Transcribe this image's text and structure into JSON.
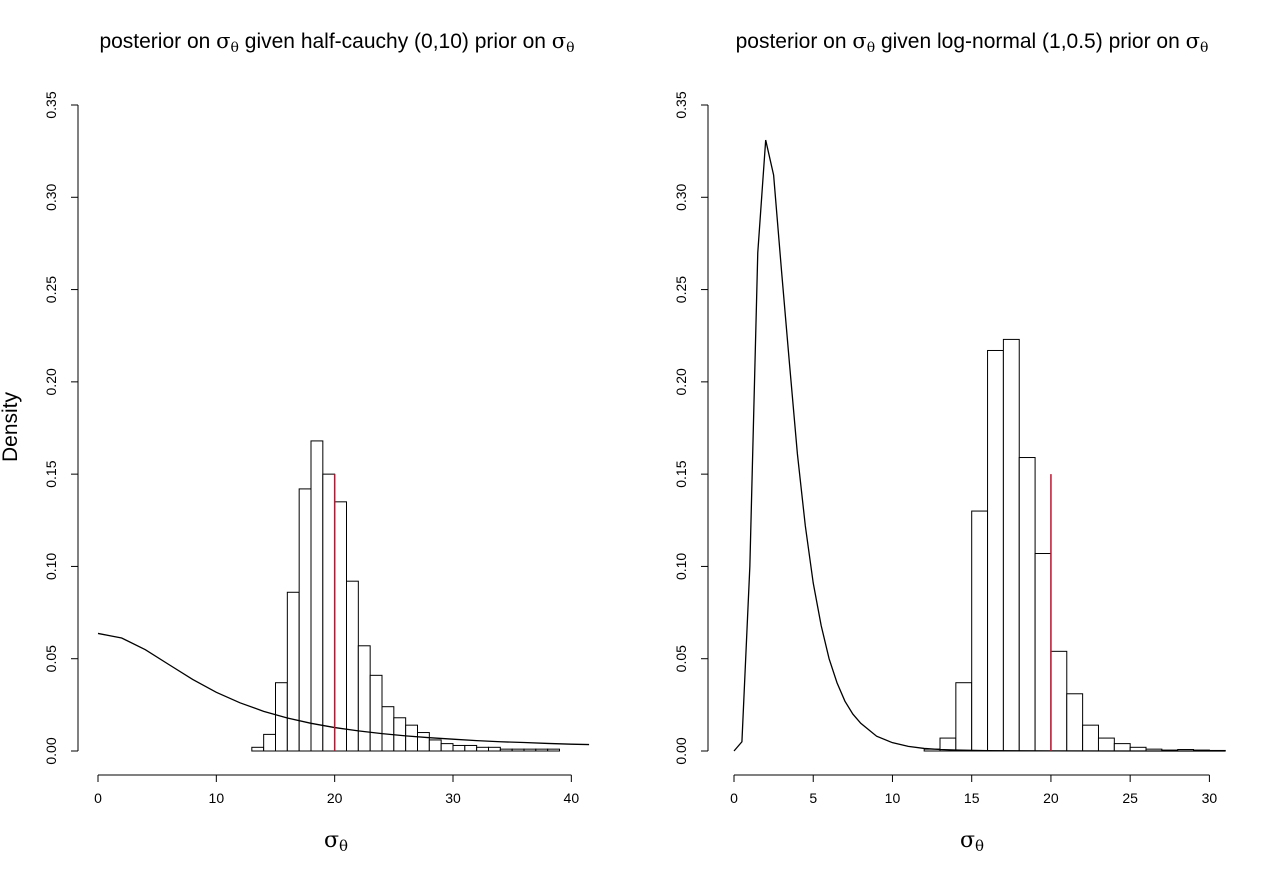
{
  "colors": {
    "reference_line": "#c8102e",
    "bars": "#ffffff",
    "ink": "#000000"
  },
  "y_axis_shared_label": "Density",
  "chart_data": [
    {
      "type": "bar",
      "title_prefix": "posterior on ",
      "title_symbol": "σ",
      "title_subscript": "θ",
      "title_middle": " given half-cauchy (0,10) prior on  ",
      "title_symbol2": "σ",
      "title_subscript2": "θ",
      "xlabel_symbol": "σ",
      "xlabel_subscript": "θ",
      "ylabel": "Density",
      "xlim": [
        0,
        42
      ],
      "ylim": [
        0,
        0.35
      ],
      "x_ticks": [
        0,
        10,
        20,
        30,
        40
      ],
      "y_ticks": [
        "0.00",
        "0.05",
        "0.10",
        "0.15",
        "0.20",
        "0.25",
        "0.30",
        "0.35"
      ],
      "histogram": {
        "bin_edges": [
          13,
          14,
          15,
          16,
          17,
          18,
          19,
          20,
          21,
          22,
          23,
          24,
          25,
          26,
          27,
          28,
          29,
          30,
          31,
          32,
          33,
          34,
          35,
          36,
          37,
          38,
          39
        ],
        "densities": [
          0.002,
          0.009,
          0.037,
          0.086,
          0.142,
          0.168,
          0.15,
          0.135,
          0.092,
          0.057,
          0.041,
          0.024,
          0.018,
          0.014,
          0.01,
          0.006,
          0.004,
          0.003,
          0.003,
          0.002,
          0.002,
          0.001,
          0.001,
          0.001,
          0.001,
          0.001
        ]
      },
      "curve": {
        "name": "half-cauchy (0,10) prior",
        "x": [
          0,
          2,
          4,
          6,
          8,
          10,
          12,
          14,
          16,
          18,
          20,
          22,
          24,
          26,
          28,
          30,
          32,
          34,
          36,
          38,
          40,
          41.5
        ],
        "y": [
          0.0637,
          0.0612,
          0.0549,
          0.0468,
          0.0388,
          0.0318,
          0.0261,
          0.0215,
          0.0179,
          0.015,
          0.0127,
          0.0109,
          0.0094,
          0.0082,
          0.0072,
          0.0064,
          0.0056,
          0.005,
          0.0046,
          0.0041,
          0.0037,
          0.0035
        ]
      },
      "reference_line": {
        "x": 20,
        "y0": 0,
        "y1": 0.15
      }
    },
    {
      "type": "bar",
      "title_prefix": "posterior on ",
      "title_symbol": "σ",
      "title_subscript": "θ",
      "title_middle": " given log-normal (1,0.5) prior on ",
      "title_symbol2": "σ",
      "title_subscript2": "θ",
      "xlabel_symbol": "σ",
      "xlabel_subscript": "θ",
      "ylabel": "",
      "xlim": [
        0,
        31.3
      ],
      "ylim": [
        0,
        0.35
      ],
      "x_ticks": [
        0,
        5,
        10,
        15,
        20,
        25,
        30
      ],
      "y_ticks": [
        "0.00",
        "0.05",
        "0.10",
        "0.15",
        "0.20",
        "0.25",
        "0.30",
        "0.35"
      ],
      "histogram": {
        "bin_edges": [
          12,
          13,
          14,
          15,
          16,
          17,
          18,
          19,
          20,
          21,
          22,
          23,
          24,
          25,
          26,
          27,
          28,
          29,
          30,
          31
        ],
        "densities": [
          0.001,
          0.007,
          0.037,
          0.13,
          0.217,
          0.223,
          0.159,
          0.107,
          0.054,
          0.031,
          0.014,
          0.007,
          0.004,
          0.002,
          0.001,
          0.0005,
          0.0008,
          0.0005,
          0.0003
        ]
      },
      "curve": {
        "name": "log-normal (1,0.5) prior",
        "x": [
          0,
          0.5,
          1.0,
          1.5,
          2.0,
          2.5,
          3.0,
          3.5,
          4.0,
          4.5,
          5.0,
          5.5,
          6.0,
          6.5,
          7.0,
          7.5,
          8.0,
          9.0,
          10.0,
          11.0,
          12.0,
          13.0,
          14.0,
          16.0,
          18.0,
          20.0,
          25.0,
          31.0
        ],
        "y": [
          0.0,
          0.005,
          0.1,
          0.27,
          0.331,
          0.312,
          0.26,
          0.21,
          0.161,
          0.122,
          0.091,
          0.068,
          0.05,
          0.037,
          0.027,
          0.02,
          0.015,
          0.008,
          0.0045,
          0.0025,
          0.0014,
          0.0008,
          0.0005,
          0.0002,
          0.0001,
          5e-05,
          0.0,
          0.0
        ]
      },
      "reference_line": {
        "x": 20,
        "y0": 0,
        "y1": 0.15
      }
    }
  ]
}
